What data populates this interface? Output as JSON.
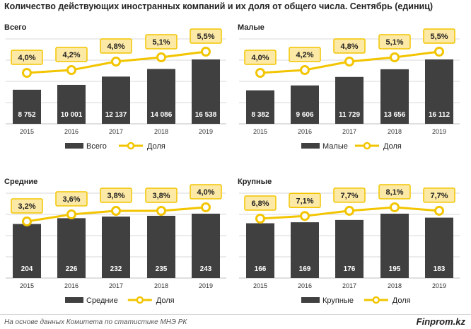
{
  "title": "Количество действующих иностранных компаний и их доля от общего числа. Сентябрь (единиц)",
  "source": "На основе данных  Комитета по статистике МНЭ РК",
  "brand": "Finprom.kz",
  "colors": {
    "bar": "#404040",
    "line": "#f2c500",
    "label_fill": "#fde9a6",
    "grid": "#d9d9d9"
  },
  "chart_data": [
    {
      "type": "bar",
      "title": "Всего",
      "categories": [
        "2015",
        "2016",
        "2017",
        "2018",
        "2019"
      ],
      "series": [
        {
          "name": "Всего",
          "type": "bar",
          "values": [
            8752,
            10001,
            12137,
            14086,
            16538
          ],
          "labels": [
            "8 752",
            "10 001",
            "12 137",
            "14 086",
            "16 538"
          ]
        },
        {
          "name": "Доля",
          "type": "line",
          "values": [
            4.0,
            4.2,
            4.8,
            5.1,
            5.5
          ],
          "labels": [
            "4,0%",
            "4,2%",
            "4,8%",
            "5,1%",
            "5,5%"
          ]
        }
      ]
    },
    {
      "type": "bar",
      "title": "Малые",
      "categories": [
        "2015",
        "2016",
        "2017",
        "2018",
        "2019"
      ],
      "series": [
        {
          "name": "Малые",
          "type": "bar",
          "values": [
            8382,
            9606,
            11729,
            13656,
            16112
          ],
          "labels": [
            "8 382",
            "9 606",
            "11 729",
            "13 656",
            "16 112"
          ]
        },
        {
          "name": "Доля",
          "type": "line",
          "values": [
            4.0,
            4.2,
            4.8,
            5.1,
            5.5
          ],
          "labels": [
            "4,0%",
            "4,2%",
            "4,8%",
            "5,1%",
            "5,5%"
          ]
        }
      ]
    },
    {
      "type": "bar",
      "title": "Средние",
      "categories": [
        "2015",
        "2016",
        "2017",
        "2018",
        "2019"
      ],
      "series": [
        {
          "name": "Средние",
          "type": "bar",
          "values": [
            204,
            226,
            232,
            235,
            243
          ],
          "labels": [
            "204",
            "226",
            "232",
            "235",
            "243"
          ]
        },
        {
          "name": "Доля",
          "type": "line",
          "values": [
            3.2,
            3.6,
            3.8,
            3.8,
            4.0
          ],
          "labels": [
            "3,2%",
            "3,6%",
            "3,8%",
            "3,8%",
            "4,0%"
          ]
        }
      ]
    },
    {
      "type": "bar",
      "title": "Крупные",
      "categories": [
        "2015",
        "2016",
        "2017",
        "2018",
        "2019"
      ],
      "series": [
        {
          "name": "Крупные",
          "type": "bar",
          "values": [
            166,
            169,
            176,
            195,
            183
          ],
          "labels": [
            "166",
            "169",
            "176",
            "195",
            "183"
          ]
        },
        {
          "name": "Доля",
          "type": "line",
          "values": [
            6.8,
            7.1,
            7.7,
            8.1,
            7.7
          ],
          "labels": [
            "6,8%",
            "7,1%",
            "7,7%",
            "8,1%",
            "7,7%"
          ]
        }
      ]
    }
  ]
}
